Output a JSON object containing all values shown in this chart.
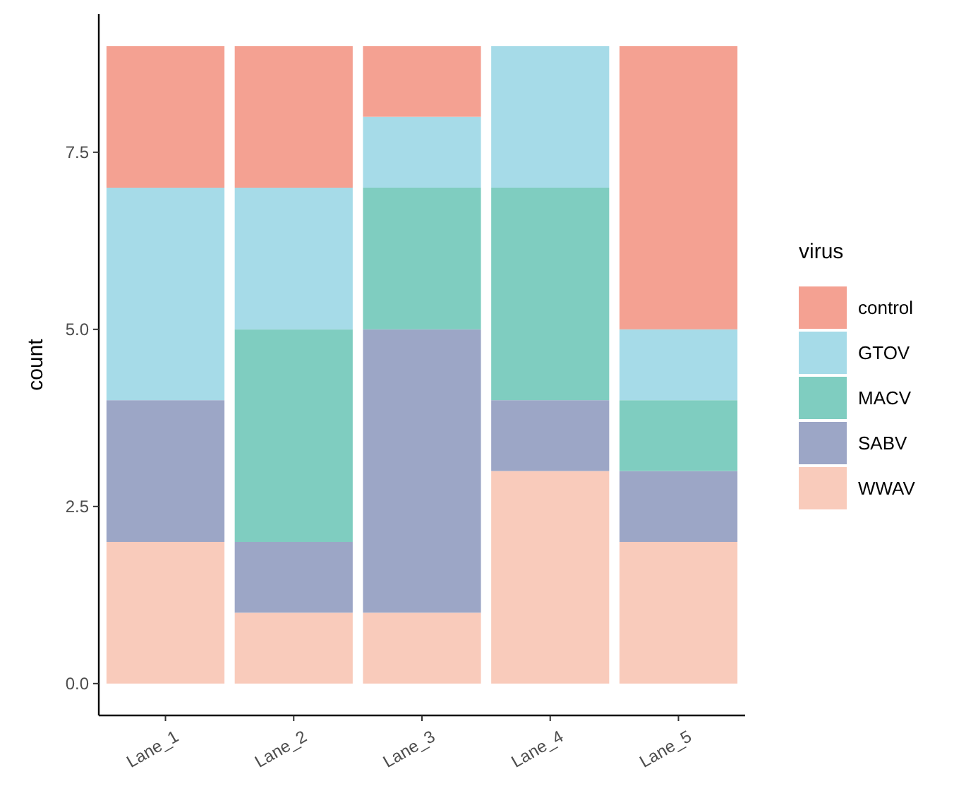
{
  "chart_data": {
    "type": "bar",
    "stacked": true,
    "categories": [
      "Lane_1",
      "Lane_2",
      "Lane_3",
      "Lane_4",
      "Lane_5"
    ],
    "ylabel": "count",
    "legend_title": "virus",
    "legend": "right",
    "grid": false,
    "ylim": [
      -0.45,
      9.45
    ],
    "yticks": [
      {
        "value": 0,
        "label": "0.0"
      },
      {
        "value": 2.5,
        "label": "2.5"
      },
      {
        "value": 5,
        "label": "5.0"
      },
      {
        "value": 7.5,
        "label": "7.5"
      }
    ],
    "series": [
      {
        "name": "WWAV",
        "color": "#f9cbbb",
        "values": [
          2,
          1,
          1,
          3,
          2
        ]
      },
      {
        "name": "SABV",
        "color": "#9ca6c6",
        "values": [
          2,
          1,
          4,
          1,
          1
        ]
      },
      {
        "name": "MACV",
        "color": "#7fcdc0",
        "values": [
          0,
          3,
          2,
          3,
          1
        ]
      },
      {
        "name": "GTOV",
        "color": "#a6dbe8",
        "values": [
          3,
          2,
          1,
          2,
          1
        ]
      },
      {
        "name": "control",
        "color": "#f4a192",
        "values": [
          2,
          2,
          1,
          0,
          4
        ]
      }
    ]
  }
}
